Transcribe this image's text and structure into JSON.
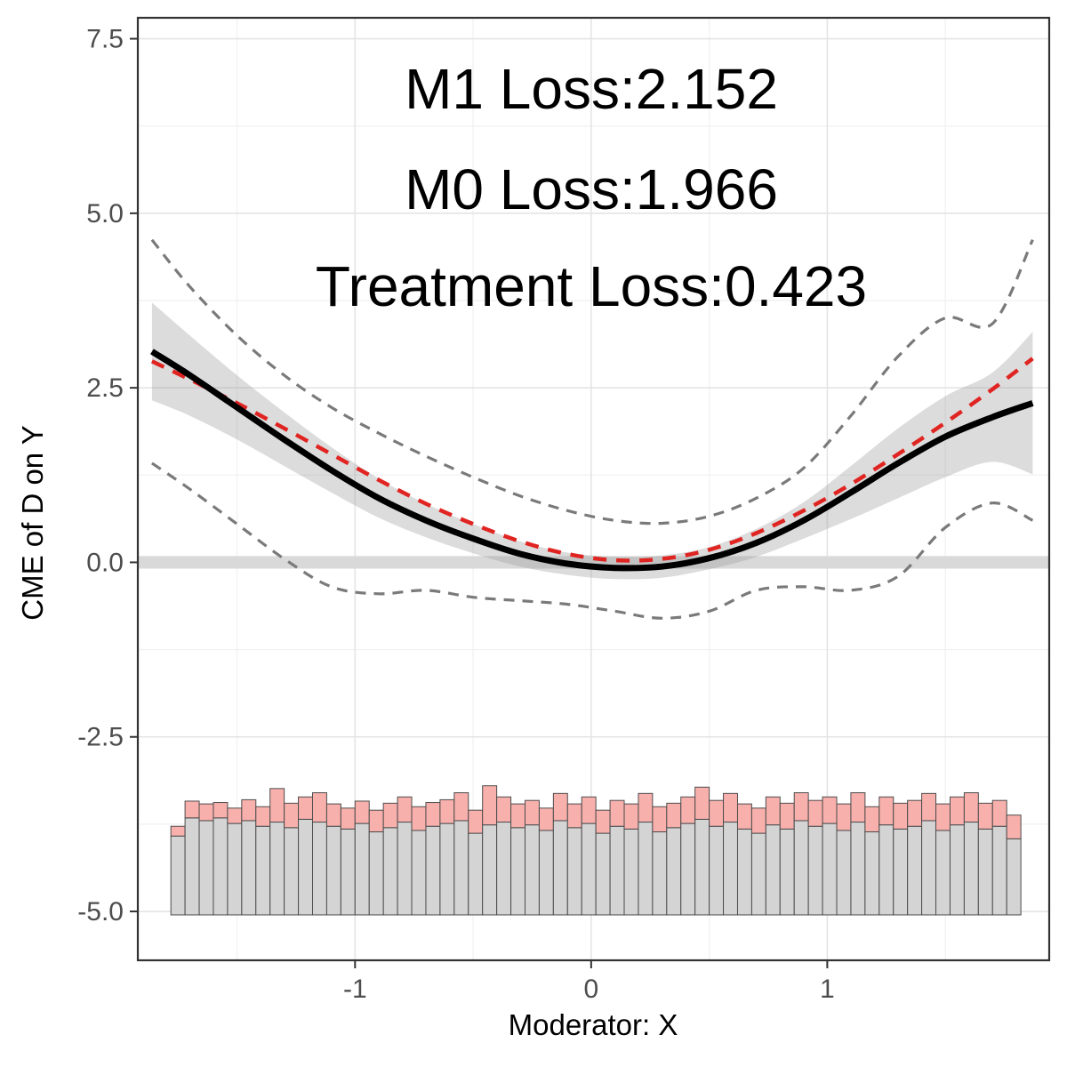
{
  "figure": {
    "xlabel": "Moderator: X",
    "ylabel": "CME of D on Y"
  },
  "chart_data": {
    "type": "line",
    "title": "",
    "annotations": [
      "M1 Loss:2.152",
      "M0 Loss:1.966",
      "Treatment Loss:0.423"
    ],
    "xlabel": "Moderator: X",
    "ylabel": "CME of D on Y",
    "x_range": [
      -1.92,
      1.94
    ],
    "y_range": [
      -5.7,
      7.8
    ],
    "x_ticks": {
      "values": [
        -1,
        0,
        1
      ],
      "labels": [
        "-1",
        "0",
        "1"
      ],
      "minor": [
        -1.5,
        -0.5,
        0.5,
        1.5
      ]
    },
    "y_ticks": {
      "values": [
        7.5,
        5.0,
        2.5,
        0.0,
        -2.5,
        -5.0
      ],
      "labels": [
        "7.5",
        "5.0",
        "2.5",
        "0.0",
        "-2.5",
        "-5.0"
      ],
      "minor": [
        6.25,
        3.75,
        1.25,
        -1.25,
        -3.75
      ]
    },
    "zero_band": {
      "center": 0,
      "half_height": 0.09,
      "color": "#d9d9d9"
    },
    "x": [
      -1.86,
      -1.7,
      -1.5,
      -1.3,
      -1.1,
      -0.9,
      -0.7,
      -0.5,
      -0.3,
      -0.1,
      0.1,
      0.3,
      0.5,
      0.7,
      0.9,
      1.1,
      1.3,
      1.5,
      1.7,
      1.87
    ],
    "series": [
      {
        "name": "estimated-cme",
        "style": "solid",
        "color": "#000000",
        "width": 7,
        "values": [
          3.02,
          2.68,
          2.22,
          1.76,
          1.32,
          0.92,
          0.6,
          0.34,
          0.12,
          -0.02,
          -0.08,
          -0.06,
          0.06,
          0.28,
          0.6,
          1.0,
          1.42,
          1.8,
          2.08,
          2.28
        ]
      },
      {
        "name": "true-effect-dashed",
        "style": "dashed",
        "color": "#e02421",
        "width": 4.5,
        "dash": "15 11",
        "values": [
          2.88,
          2.62,
          2.28,
          1.92,
          1.55,
          1.18,
          0.84,
          0.55,
          0.3,
          0.12,
          0.03,
          0.05,
          0.18,
          0.42,
          0.74,
          1.12,
          1.55,
          2.0,
          2.48,
          2.92
        ]
      },
      {
        "name": "ci-upper-dashed",
        "style": "dashed",
        "color": "#7a7a7a",
        "width": 3.2,
        "dash": "12 9",
        "values": [
          4.62,
          3.95,
          3.25,
          2.68,
          2.22,
          1.85,
          1.52,
          1.22,
          0.95,
          0.74,
          0.6,
          0.56,
          0.66,
          0.92,
          1.35,
          2.1,
          2.95,
          3.5,
          3.42,
          4.62
        ]
      },
      {
        "name": "ci-lower-dashed",
        "style": "dashed",
        "color": "#7a7a7a",
        "width": 3.2,
        "dash": "12 9",
        "values": [
          1.42,
          1.05,
          0.55,
          0.05,
          -0.35,
          -0.45,
          -0.4,
          -0.5,
          -0.55,
          -0.6,
          -0.7,
          -0.8,
          -0.7,
          -0.4,
          -0.35,
          -0.4,
          -0.2,
          0.5,
          0.85,
          0.6
        ]
      }
    ],
    "band": {
      "color": "#9c9c9c",
      "opacity": 0.35,
      "upper": [
        3.72,
        3.25,
        2.68,
        2.15,
        1.65,
        1.2,
        0.84,
        0.55,
        0.3,
        0.14,
        0.08,
        0.1,
        0.22,
        0.48,
        0.86,
        1.38,
        1.92,
        2.38,
        2.72,
        3.3
      ],
      "lower": [
        2.32,
        2.1,
        1.76,
        1.38,
        1.0,
        0.64,
        0.36,
        0.13,
        -0.06,
        -0.18,
        -0.24,
        -0.22,
        -0.1,
        0.08,
        0.34,
        0.62,
        0.92,
        1.22,
        1.44,
        1.26
      ]
    },
    "histogram": {
      "x_start": -1.78,
      "bin_width": 0.06,
      "baseline": -5.05,
      "gray_color": "#d4d4d4",
      "pink_color": "#f8b0ac",
      "stroke": "#4d4d4d",
      "pink_top": [
        -3.78,
        -3.42,
        -3.46,
        -3.44,
        -3.52,
        -3.4,
        -3.5,
        -3.24,
        -3.45,
        -3.36,
        -3.3,
        -3.46,
        -3.52,
        -3.42,
        -3.55,
        -3.45,
        -3.36,
        -3.5,
        -3.44,
        -3.4,
        -3.3,
        -3.55,
        -3.2,
        -3.36,
        -3.46,
        -3.41,
        -3.52,
        -3.31,
        -3.46,
        -3.36,
        -3.55,
        -3.41,
        -3.46,
        -3.31,
        -3.5,
        -3.45,
        -3.36,
        -3.22,
        -3.41,
        -3.31,
        -3.46,
        -3.52,
        -3.36,
        -3.45,
        -3.3,
        -3.41,
        -3.36,
        -3.46,
        -3.3,
        -3.5,
        -3.36,
        -3.45,
        -3.41,
        -3.31,
        -3.46,
        -3.36,
        -3.3,
        -3.45,
        -3.41,
        -3.62
      ],
      "gray_top": [
        -3.92,
        -3.66,
        -3.7,
        -3.66,
        -3.74,
        -3.7,
        -3.78,
        -3.72,
        -3.8,
        -3.68,
        -3.72,
        -3.78,
        -3.82,
        -3.74,
        -3.86,
        -3.8,
        -3.72,
        -3.84,
        -3.78,
        -3.74,
        -3.7,
        -3.88,
        -3.76,
        -3.72,
        -3.8,
        -3.76,
        -3.84,
        -3.7,
        -3.8,
        -3.74,
        -3.88,
        -3.78,
        -3.82,
        -3.72,
        -3.86,
        -3.8,
        -3.74,
        -3.68,
        -3.78,
        -3.72,
        -3.82,
        -3.88,
        -3.76,
        -3.82,
        -3.7,
        -3.78,
        -3.74,
        -3.84,
        -3.72,
        -3.86,
        -3.76,
        -3.82,
        -3.78,
        -3.7,
        -3.84,
        -3.76,
        -3.72,
        -3.82,
        -3.78,
        -3.96
      ]
    },
    "legend": "off",
    "grid": "on"
  }
}
